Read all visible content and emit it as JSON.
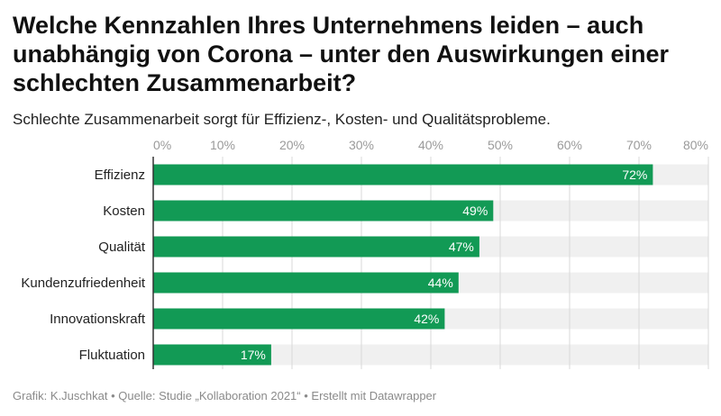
{
  "header": {
    "title": "Welche Kennzahlen Ihres Unternehmens leiden – auch unabhängig von Corona – unter den Auswirkungen einer schlechten Zusammenarbeit?",
    "subtitle": "Schlechte Zusammenarbeit sorgt für Effizienz-, Kosten- und Qualitätsprobleme."
  },
  "footer": {
    "credit": "Grafik: K.Juschkat",
    "separator": " • ",
    "source": "Quelle: Studie „Kollaboration 2021“",
    "tool": "Erstellt mit Datawrapper"
  },
  "colors": {
    "bar": "#129a55",
    "track": "#f0f0f0",
    "grid": "#d9d9d9",
    "axis": "#333333",
    "tick_text": "#9a9a9a",
    "label_text": "#222222",
    "value_text": "#ffffff"
  },
  "chart_data": {
    "type": "bar",
    "orientation": "horizontal",
    "title": "Welche Kennzahlen Ihres Unternehmens leiden – auch unabhängig von Corona – unter den Auswirkungen einer schlechten Zusammenarbeit?",
    "xlabel": "",
    "ylabel": "",
    "xlim": [
      0,
      80
    ],
    "ticks": [
      0,
      10,
      20,
      30,
      40,
      50,
      60,
      70,
      80
    ],
    "tick_labels": [
      "0%",
      "10%",
      "20%",
      "30%",
      "40%",
      "50%",
      "60%",
      "70%",
      "80%"
    ],
    "categories": [
      "Effizienz",
      "Kosten",
      "Qualität",
      "Kundenzufriedenheit",
      "Innovationskraft",
      "Fluktuation"
    ],
    "values": [
      72,
      49,
      47,
      44,
      42,
      17
    ],
    "value_labels": [
      "72%",
      "49%",
      "47%",
      "44%",
      "42%",
      "17%"
    ],
    "grid": true,
    "legend": "none"
  }
}
